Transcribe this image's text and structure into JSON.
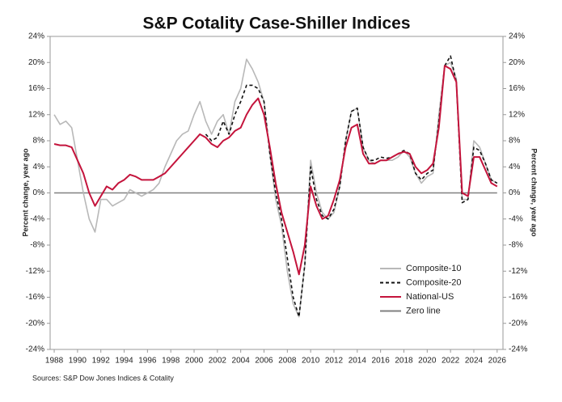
{
  "chart_data": {
    "type": "line",
    "title": "S&P Cotality Case-Shiller Indices",
    "ylabel": "Percent change, year ago",
    "y2label": "Percent change, year ago",
    "source": "Sources: S&P Dow Jones Indices & Cotality",
    "x": [
      1988,
      1988.5,
      1989,
      1989.5,
      1990,
      1990.5,
      1991,
      1991.5,
      1992,
      1992.5,
      1993,
      1993.5,
      1994,
      1994.5,
      1995,
      1995.5,
      1996,
      1996.5,
      1997,
      1997.5,
      1998,
      1998.5,
      1999,
      1999.5,
      2000,
      2000.5,
      2001,
      2001.5,
      2002,
      2002.5,
      2003,
      2003.5,
      2004,
      2004.5,
      2005,
      2005.5,
      2006,
      2006.5,
      2007,
      2007.5,
      2008,
      2008.5,
      2009,
      2009.5,
      2010,
      2010.5,
      2011,
      2011.5,
      2012,
      2012.5,
      2013,
      2013.5,
      2014,
      2014.5,
      2015,
      2015.5,
      2016,
      2016.5,
      2017,
      2017.5,
      2018,
      2018.5,
      2019,
      2019.5,
      2020,
      2020.5,
      2021,
      2021.5,
      2022,
      2022.5,
      2023,
      2023.5,
      2024,
      2024.5,
      2025,
      2025.5,
      2026
    ],
    "series": [
      {
        "name": "Composite-10",
        "color": "#b8b8b8",
        "style": "solid",
        "values": [
          12,
          10.5,
          11,
          10,
          5,
          0,
          -4,
          -6,
          -1,
          -1,
          -2,
          -1.5,
          -1,
          0.5,
          0,
          -0.5,
          0,
          0.5,
          1.5,
          4,
          6,
          8,
          9,
          9.5,
          12,
          14,
          11,
          9,
          11,
          12,
          9,
          14,
          16,
          20.5,
          19,
          17,
          14,
          6,
          -1,
          -5,
          -12,
          -17,
          -19,
          -11,
          5,
          0,
          -3,
          -4,
          -3,
          1,
          8,
          12.5,
          13,
          7,
          5,
          4.5,
          5,
          5,
          5,
          5.5,
          6.5,
          5.5,
          3,
          1.5,
          2.5,
          3,
          12,
          19.5,
          20,
          17.5,
          -1,
          -1,
          8,
          7,
          4.5,
          2,
          1.5
        ]
      },
      {
        "name": "Composite-20",
        "color": "#111111",
        "style": "dashed",
        "values": [
          null,
          null,
          null,
          null,
          null,
          null,
          null,
          null,
          null,
          null,
          null,
          null,
          null,
          null,
          null,
          null,
          null,
          null,
          null,
          null,
          null,
          null,
          null,
          null,
          null,
          null,
          9,
          8,
          8.5,
          11,
          9,
          12,
          14,
          16.5,
          16.5,
          16,
          14,
          6,
          0,
          -4,
          -10,
          -16,
          -19,
          -11,
          4,
          -1,
          -3.5,
          -4,
          -2.5,
          1,
          8,
          12.5,
          13,
          7,
          5,
          5,
          5.5,
          5.3,
          5.5,
          6,
          6.5,
          6,
          3,
          2,
          3,
          3.5,
          11,
          19.5,
          21,
          17,
          -1.5,
          -1,
          7,
          6.5,
          4.5,
          2,
          1.5
        ]
      },
      {
        "name": "National-US",
        "color": "#c4143c",
        "style": "solid",
        "values": [
          7.5,
          7.3,
          7.3,
          7,
          5,
          3,
          0,
          -2,
          -0.5,
          1,
          0.5,
          1.5,
          2,
          2.8,
          2.5,
          2,
          2,
          2,
          2.5,
          3,
          4,
          5,
          6,
          7,
          8,
          9,
          8.5,
          7.5,
          7,
          8,
          8.5,
          9.5,
          10,
          12,
          13.5,
          14.5,
          12,
          7,
          1.5,
          -3,
          -6,
          -9,
          -12.5,
          -8,
          1,
          -2,
          -4,
          -3.5,
          -1,
          2,
          7,
          10,
          10.5,
          6,
          4.5,
          4.5,
          5,
          5,
          5.5,
          6,
          6.3,
          6,
          4,
          3,
          3.5,
          4.5,
          10,
          19.5,
          19,
          17,
          0,
          -0.5,
          5.5,
          5.5,
          3.5,
          1.5,
          1
        ]
      },
      {
        "name": "Zero line",
        "color": "#808080",
        "style": "solid",
        "x": [
          1988,
          2026
        ],
        "values": [
          0,
          0
        ]
      }
    ],
    "xlim": [
      1987.65,
      2026.5
    ],
    "xticks": [
      1988,
      1990,
      1992,
      1994,
      1996,
      1998,
      2000,
      2002,
      2004,
      2006,
      2008,
      2010,
      2012,
      2014,
      2016,
      2018,
      2020,
      2022,
      2024,
      2026
    ],
    "ylim": [
      -24,
      24
    ],
    "yticks": [
      {
        "value": -24,
        "label": "-24%"
      },
      {
        "value": -20,
        "label": "-20%"
      },
      {
        "value": -16,
        "label": "-16%"
      },
      {
        "value": -12,
        "label": "-12%"
      },
      {
        "value": -8,
        "label": "-8%"
      },
      {
        "value": -4,
        "label": "-4%"
      },
      {
        "value": 0,
        "label": "0%"
      },
      {
        "value": 4,
        "label": "4%"
      },
      {
        "value": 8,
        "label": "8%"
      },
      {
        "value": 12,
        "label": "12%"
      },
      {
        "value": 16,
        "label": "16%"
      },
      {
        "value": 20,
        "label": "20%"
      },
      {
        "value": 24,
        "label": "24%"
      }
    ],
    "y2lim": [
      -24,
      24
    ],
    "y2ticks": [
      {
        "value": -24,
        "label": "-24%"
      },
      {
        "value": -20,
        "label": "-20%"
      },
      {
        "value": -16,
        "label": "-16%"
      },
      {
        "value": -12,
        "label": "-12%"
      },
      {
        "value": -8,
        "label": "-8%"
      },
      {
        "value": -4,
        "label": "-4%"
      },
      {
        "value": 0,
        "label": "0%"
      },
      {
        "value": 4,
        "label": "4%"
      },
      {
        "value": 8,
        "label": "8%"
      },
      {
        "value": 12,
        "label": "12%"
      },
      {
        "value": 16,
        "label": "16%"
      },
      {
        "value": 20,
        "label": "20%"
      },
      {
        "value": 24,
        "label": "24%"
      }
    ],
    "legend": "lower right"
  }
}
